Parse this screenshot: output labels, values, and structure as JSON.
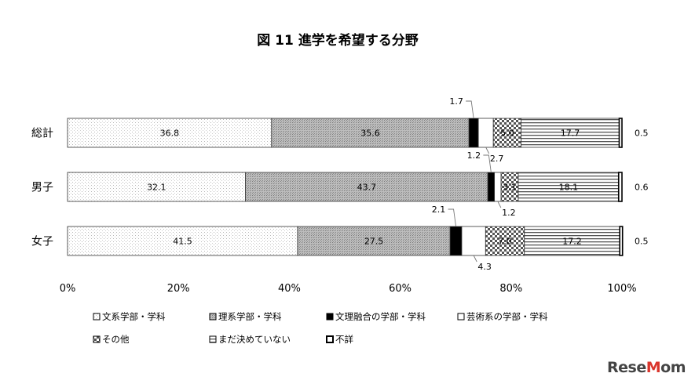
{
  "chart_data": {
    "type": "bar",
    "orientation": "horizontal",
    "stacked": true,
    "percent": true,
    "title": "図 11 進学を希望する分野",
    "categories": [
      "総計",
      "男子",
      "女子"
    ],
    "x_ticks": [
      "0%",
      "20%",
      "40%",
      "60%",
      "80%",
      "100%"
    ],
    "xlim": [
      0,
      100
    ],
    "grid": false,
    "legend_position": "bottom",
    "series": [
      {
        "name": "文系学部・学科",
        "values": [
          36.8,
          32.1,
          41.5
        ],
        "labels": [
          "36.8",
          "32.1",
          "41.5"
        ],
        "pattern": "dots-light"
      },
      {
        "name": "理系学部・学科",
        "values": [
          35.6,
          43.7,
          27.5
        ],
        "labels": [
          "35.6",
          "43.7",
          "27.5"
        ],
        "pattern": "dots-dense"
      },
      {
        "name": "文理融合の学部・学科",
        "values": [
          1.7,
          1.2,
          2.1
        ],
        "labels": [
          "1.7",
          "1.2",
          "2.1"
        ],
        "pattern": "solid-black"
      },
      {
        "name": "芸術系の学部・学科",
        "values": [
          2.7,
          1.2,
          4.3
        ],
        "labels": [
          "2.7",
          "1.2",
          "4.3"
        ],
        "pattern": "white"
      },
      {
        "name": "その他",
        "values": [
          5.0,
          3.1,
          7.0
        ],
        "labels": [
          "5.0",
          "3.1",
          "7.0"
        ],
        "pattern": "check"
      },
      {
        "name": "まだ決めていない",
        "values": [
          17.7,
          18.1,
          17.2
        ],
        "labels": [
          "17.7",
          "18.1",
          "17.2"
        ],
        "pattern": "horizontal-lines"
      },
      {
        "name": "不詳",
        "values": [
          0.5,
          0.6,
          0.5
        ],
        "labels": [
          "0.5",
          "0.6",
          "0.5"
        ],
        "pattern": "black-border"
      }
    ]
  },
  "watermark": "ReseMom"
}
